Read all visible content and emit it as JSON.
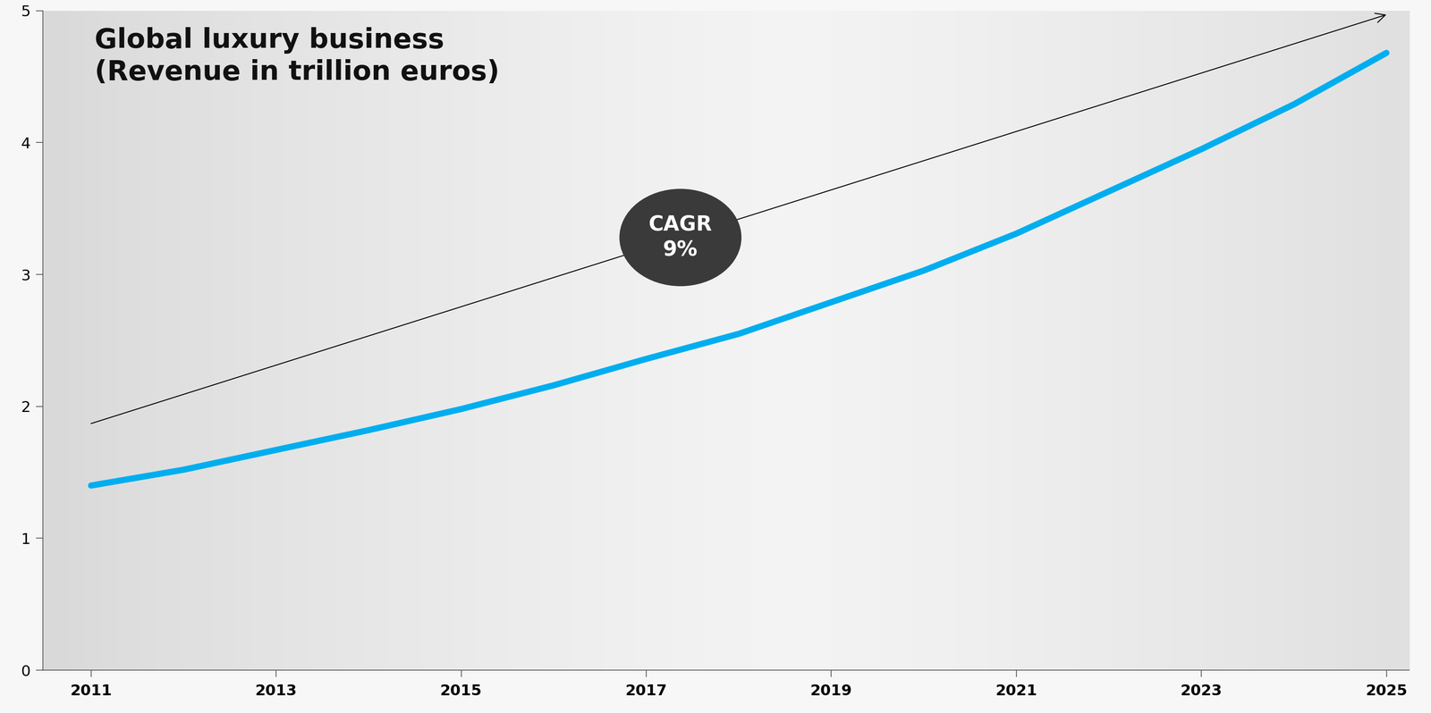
{
  "chart_data": {
    "type": "line",
    "title": "Global luxury business\n(Revenue in trillion euros)",
    "x": [
      2011,
      2012,
      2013,
      2014,
      2015,
      2016,
      2017,
      2018,
      2019,
      2020,
      2021,
      2022,
      2023,
      2024,
      2025
    ],
    "values": [
      1.4,
      1.52,
      1.67,
      1.82,
      1.98,
      2.16,
      2.36,
      2.55,
      2.79,
      3.03,
      3.31,
      3.63,
      3.95,
      4.29,
      4.68
    ],
    "color": "#00aeef",
    "trend": {
      "x": [
        2011,
        2025
      ],
      "values": [
        1.87,
        4.97
      ],
      "color": "#000000"
    },
    "annotation": "CAGR\n9%",
    "xlim": [
      2010.48,
      2025.25
    ],
    "xticks": [
      2011,
      2013,
      2015,
      2017,
      2019,
      2021,
      2023,
      2025
    ],
    "ylim": [
      0,
      5
    ],
    "yticks": [
      0,
      1,
      2,
      3,
      4,
      5
    ],
    "grid": false
  }
}
